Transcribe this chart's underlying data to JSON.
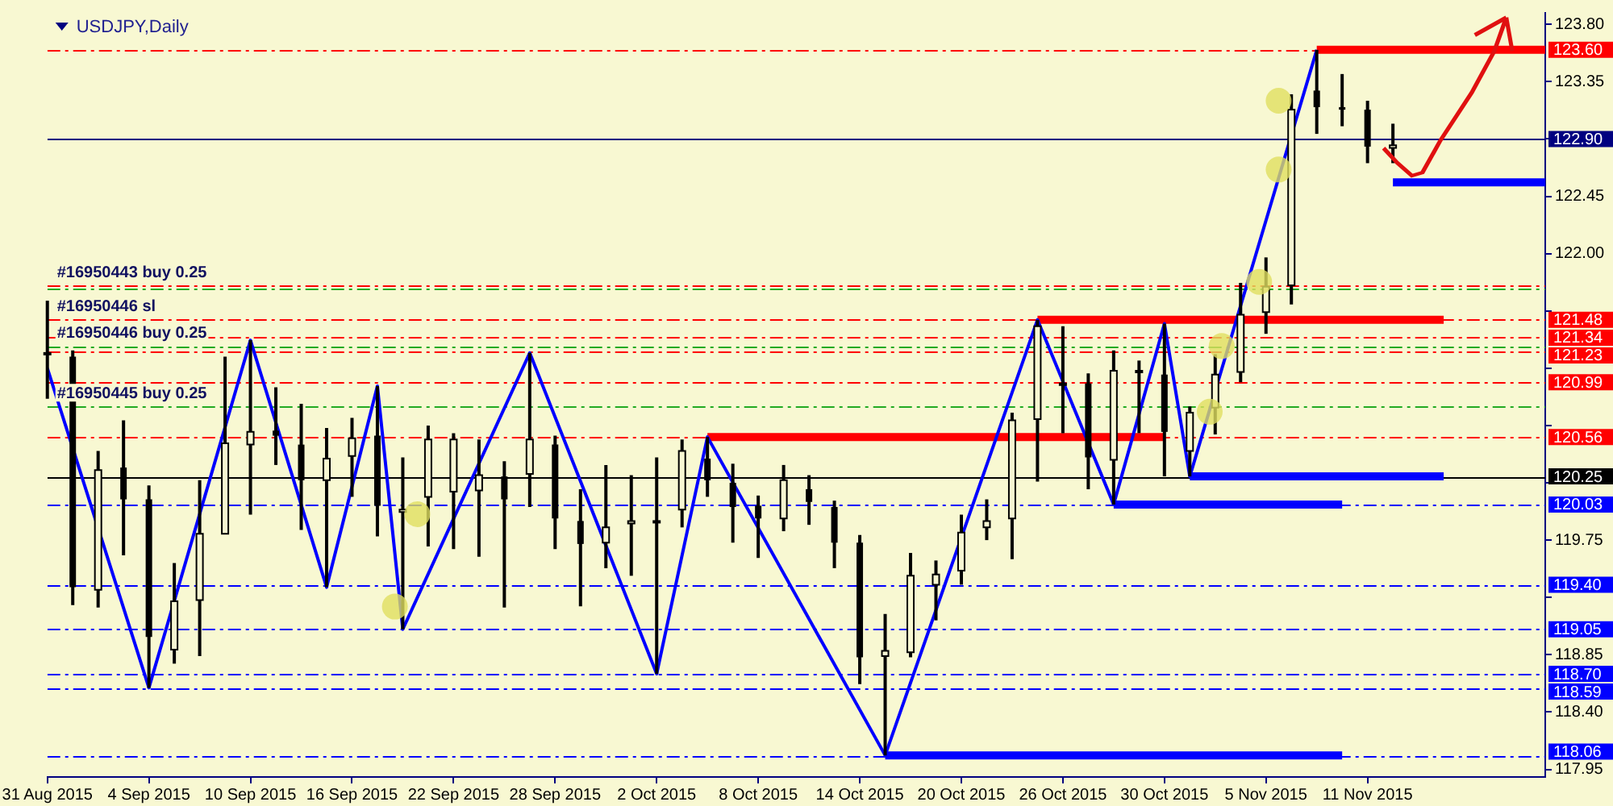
{
  "chart_data": {
    "type": "candlestick",
    "title": "USDJPY,Daily",
    "categories": [
      "31 Aug 2015",
      null,
      null,
      null,
      "4 Sep 2015",
      null,
      null,
      null,
      "10 Sep 2015",
      null,
      null,
      null,
      "16 Sep 2015",
      null,
      null,
      null,
      "22 Sep 2015",
      null,
      null,
      null,
      "28 Sep 2015",
      null,
      null,
      null,
      "2 Oct 2015",
      null,
      null,
      null,
      "8 Oct 2015",
      null,
      null,
      null,
      "14 Oct 2015",
      null,
      null,
      null,
      "20 Oct 2015",
      null,
      null,
      null,
      "26 Oct 2015",
      null,
      null,
      null,
      "30 Oct 2015",
      null,
      null,
      null,
      "5 Nov 2015",
      null,
      null,
      null,
      "11 Nov 2015",
      null,
      null,
      null,
      null,
      null,
      null,
      null
    ],
    "ohlc": [
      [
        121.22,
        121.63,
        120.86,
        121.22
      ],
      [
        121.19,
        121.24,
        119.24,
        119.38
      ],
      [
        119.36,
        120.45,
        119.22,
        120.3
      ],
      [
        120.32,
        120.69,
        119.63,
        120.07
      ],
      [
        120.07,
        120.18,
        118.59,
        118.99
      ],
      [
        118.89,
        119.57,
        118.78,
        119.27
      ],
      [
        119.28,
        120.22,
        118.84,
        119.8
      ],
      [
        119.8,
        121.19,
        119.8,
        120.51
      ],
      [
        120.5,
        121.32,
        119.95,
        120.6
      ],
      [
        120.61,
        120.95,
        120.34,
        120.57
      ],
      [
        120.5,
        120.82,
        119.83,
        120.22
      ],
      [
        120.22,
        120.63,
        119.38,
        120.39
      ],
      [
        120.41,
        120.71,
        120.09,
        120.55
      ],
      [
        120.57,
        120.96,
        119.78,
        120.02
      ],
      [
        119.97,
        120.4,
        119.05,
        119.99
      ],
      [
        120.09,
        120.65,
        119.7,
        120.54
      ],
      [
        120.13,
        120.59,
        119.68,
        120.54
      ],
      [
        120.14,
        120.54,
        119.62,
        120.26
      ],
      [
        120.25,
        120.37,
        119.22,
        120.07
      ],
      [
        120.27,
        121.22,
        120.01,
        120.54
      ],
      [
        120.5,
        120.57,
        119.68,
        119.92
      ],
      [
        119.9,
        120.15,
        119.23,
        119.72
      ],
      [
        119.73,
        120.34,
        119.53,
        119.85
      ],
      [
        119.88,
        120.26,
        119.47,
        119.9
      ],
      [
        119.9,
        120.4,
        118.7,
        119.9
      ],
      [
        119.99,
        120.54,
        119.85,
        120.45
      ],
      [
        120.39,
        120.56,
        120.09,
        120.22
      ],
      [
        120.2,
        120.35,
        119.73,
        120.01
      ],
      [
        120.02,
        120.1,
        119.61,
        119.92
      ],
      [
        119.92,
        120.34,
        119.82,
        120.22
      ],
      [
        120.15,
        120.26,
        119.87,
        120.05
      ],
      [
        120.01,
        120.06,
        119.53,
        119.73
      ],
      [
        119.73,
        119.79,
        118.62,
        118.83
      ],
      [
        118.84,
        119.17,
        118.06,
        118.88
      ],
      [
        118.87,
        119.65,
        118.83,
        119.47
      ],
      [
        119.4,
        119.59,
        119.12,
        119.48
      ],
      [
        119.51,
        119.95,
        119.4,
        119.81
      ],
      [
        119.85,
        120.07,
        119.75,
        119.9
      ],
      [
        119.92,
        120.75,
        119.6,
        120.69
      ],
      [
        120.7,
        121.48,
        120.21,
        121.43
      ],
      [
        120.98,
        121.43,
        120.59,
        120.98
      ],
      [
        120.98,
        121.06,
        120.15,
        120.4
      ],
      [
        120.38,
        121.24,
        120.03,
        121.08
      ],
      [
        121.08,
        121.16,
        120.59,
        121.08
      ],
      [
        121.05,
        121.45,
        120.25,
        120.6
      ],
      [
        120.45,
        120.8,
        120.25,
        120.75
      ],
      [
        120.79,
        121.21,
        120.58,
        121.05
      ],
      [
        121.07,
        121.77,
        120.99,
        121.52
      ],
      [
        121.54,
        121.97,
        121.37,
        121.74
      ],
      [
        121.75,
        123.25,
        121.6,
        123.13
      ],
      [
        123.28,
        123.6,
        122.94,
        123.15
      ],
      [
        123.15,
        123.41,
        123.0,
        123.13
      ],
      [
        123.13,
        123.2,
        122.71,
        122.84
      ],
      [
        122.83,
        123.02,
        122.71,
        122.85
      ],
      null,
      null,
      null,
      null,
      null,
      null
    ],
    "series": [
      {
        "type": "line",
        "color": "#0000ff",
        "values": [
          121.1,
          null,
          null,
          null,
          118.59,
          null,
          null,
          null,
          121.32,
          null,
          null,
          119.38,
          null,
          120.96,
          119.05,
          null,
          null,
          null,
          null,
          121.22,
          null,
          null,
          null,
          null,
          118.7,
          null,
          120.56,
          null,
          null,
          null,
          null,
          null,
          null,
          118.06,
          null,
          null,
          null,
          null,
          null,
          121.48,
          null,
          null,
          120.03,
          null,
          121.45,
          120.25,
          null,
          null,
          null,
          null,
          123.6,
          null,
          null,
          null,
          null,
          null,
          null,
          null,
          null,
          null
        ]
      },
      {
        "type": "line",
        "color": "#ff0000",
        "values": [
          null,
          null,
          null,
          null,
          null,
          null,
          null,
          null,
          null,
          null,
          null,
          null,
          null,
          null,
          null,
          null,
          null,
          null,
          null,
          null,
          null,
          null,
          null,
          null,
          null,
          null,
          null,
          null,
          null,
          null,
          null,
          null,
          null,
          null,
          null,
          null,
          null,
          null,
          null,
          121.48,
          null,
          null,
          null,
          null,
          null,
          null,
          null,
          null,
          null,
          null,
          null,
          null,
          null,
          null,
          null,
          121.48,
          null,
          null,
          null,
          null
        ]
      },
      {
        "type": "line",
        "color": "#ff0000",
        "values": [
          null,
          null,
          null,
          null,
          null,
          null,
          null,
          null,
          null,
          null,
          null,
          null,
          null,
          null,
          null,
          null,
          null,
          null,
          null,
          null,
          null,
          null,
          null,
          null,
          null,
          null,
          120.56,
          null,
          null,
          null,
          null,
          null,
          null,
          null,
          null,
          null,
          null,
          null,
          null,
          null,
          null,
          null,
          null,
          null,
          120.56,
          null,
          null,
          null,
          null,
          null,
          null,
          null,
          null,
          null,
          null,
          null,
          null,
          null,
          null,
          null
        ]
      },
      {
        "type": "line",
        "color": "#ff0000",
        "values": [
          null,
          null,
          null,
          null,
          null,
          null,
          null,
          null,
          null,
          null,
          null,
          null,
          null,
          null,
          null,
          null,
          null,
          null,
          null,
          null,
          null,
          null,
          null,
          null,
          null,
          null,
          null,
          null,
          null,
          null,
          null,
          null,
          null,
          null,
          null,
          null,
          null,
          null,
          null,
          null,
          null,
          null,
          null,
          null,
          null,
          null,
          null,
          null,
          null,
          null,
          123.6,
          null,
          null,
          null,
          null,
          null,
          null,
          null,
          null,
          123.6
        ]
      },
      {
        "type": "line",
        "color": "#0000ff",
        "values": [
          null,
          null,
          null,
          null,
          null,
          null,
          null,
          null,
          null,
          null,
          null,
          null,
          null,
          null,
          null,
          null,
          null,
          null,
          null,
          null,
          null,
          null,
          null,
          null,
          null,
          null,
          null,
          null,
          null,
          null,
          null,
          null,
          null,
          118.06,
          null,
          null,
          null,
          null,
          null,
          null,
          null,
          null,
          null,
          null,
          null,
          null,
          null,
          null,
          null,
          null,
          null,
          118.06,
          null,
          null,
          null,
          null,
          null,
          null,
          null,
          null
        ]
      },
      {
        "type": "line",
        "color": "#0000ff",
        "values": [
          null,
          null,
          null,
          null,
          null,
          null,
          null,
          null,
          null,
          null,
          null,
          null,
          null,
          null,
          null,
          null,
          null,
          null,
          null,
          null,
          null,
          null,
          null,
          null,
          null,
          null,
          null,
          null,
          null,
          null,
          null,
          null,
          null,
          null,
          null,
          null,
          null,
          null,
          null,
          null,
          null,
          null,
          120.03,
          null,
          null,
          null,
          null,
          null,
          null,
          null,
          null,
          120.03,
          null,
          null,
          null,
          null,
          null,
          null,
          null,
          null
        ]
      },
      {
        "type": "line",
        "color": "#0000ff",
        "values": [
          null,
          null,
          null,
          null,
          null,
          null,
          null,
          null,
          null,
          null,
          null,
          null,
          null,
          null,
          null,
          null,
          null,
          null,
          null,
          null,
          null,
          null,
          null,
          null,
          null,
          null,
          null,
          null,
          null,
          null,
          null,
          null,
          null,
          null,
          null,
          null,
          null,
          null,
          null,
          null,
          null,
          null,
          null,
          null,
          null,
          120.25,
          null,
          null,
          null,
          null,
          null,
          null,
          null,
          null,
          null,
          120.25,
          null,
          null,
          null,
          null
        ]
      },
      {
        "type": "line",
        "color": "#0000ff",
        "values": [
          null,
          null,
          null,
          null,
          null,
          null,
          null,
          null,
          null,
          null,
          null,
          null,
          null,
          null,
          null,
          null,
          null,
          null,
          null,
          null,
          null,
          null,
          null,
          null,
          null,
          null,
          null,
          null,
          null,
          null,
          null,
          null,
          null,
          null,
          null,
          null,
          null,
          null,
          null,
          null,
          null,
          null,
          null,
          null,
          null,
          null,
          null,
          null,
          null,
          null,
          null,
          null,
          null,
          122.56,
          null,
          null,
          null,
          null,
          null,
          122.56
        ]
      }
    ],
    "ylim": [
      117.89,
      123.89
    ],
    "yticks": [
      {
        "value": 123.8,
        "label": "123.80"
      },
      {
        "value": 123.35,
        "label": "123.35"
      },
      {
        "value": 122.9,
        "label": null
      },
      {
        "value": 122.45,
        "label": "122.45"
      },
      {
        "value": 122,
        "label": "122.00"
      },
      {
        "value": 121.55,
        "label": null
      },
      {
        "value": 121.1,
        "label": null
      },
      {
        "value": 120.65,
        "label": null
      },
      {
        "value": 120.2,
        "label": null
      },
      {
        "value": 119.75,
        "label": "119.75"
      },
      {
        "value": 119.3,
        "label": null
      },
      {
        "value": 118.85,
        "label": "118.85"
      },
      {
        "value": 118.4,
        "label": "118.40"
      },
      {
        "value": 117.95,
        "label": "117.95"
      }
    ],
    "ref_lines": [
      {
        "axis": "y",
        "value": 123.6,
        "label": "123.60",
        "color": "#ff0000",
        "line_style": "dashed"
      },
      {
        "axis": "y",
        "value": 122.9,
        "label": "122.90",
        "color": "#000080",
        "line_style": "solid"
      },
      {
        "axis": "y",
        "value": 121.75,
        "label": null,
        "color": "#ff0000",
        "line_style": "dashed"
      },
      {
        "axis": "y",
        "value": 121.73,
        "label": null,
        "color": "#22aa22",
        "line_style": "dashed"
      },
      {
        "axis": "y",
        "value": 121.48,
        "label": "121.48",
        "color": "#ff0000",
        "line_style": "dashed"
      },
      {
        "axis": "y",
        "value": 121.34,
        "label": "121.34",
        "color": "#ff0000",
        "line_style": "dashed"
      },
      {
        "axis": "y",
        "value": 121.27,
        "label": null,
        "color": "#22aa22",
        "line_style": "dashed"
      },
      {
        "axis": "y",
        "value": 121.23,
        "label": "121.23",
        "color": "#ff0000",
        "line_style": "dashed"
      },
      {
        "axis": "y",
        "value": 120.99,
        "label": "120.99",
        "color": "#ff0000",
        "line_style": "dashed"
      },
      {
        "axis": "y",
        "value": 120.8,
        "label": null,
        "color": "#22aa22",
        "line_style": "dashed"
      },
      {
        "axis": "y",
        "value": 120.56,
        "label": "120.56",
        "color": "#ff0000",
        "line_style": "dashed"
      },
      {
        "axis": "y",
        "value": 120.25,
        "label": "120.25",
        "color": "#000000",
        "line_style": "solid"
      },
      {
        "axis": "y",
        "value": 120.03,
        "label": "120.03",
        "color": "#0000ff",
        "line_style": "dashed"
      },
      {
        "axis": "y",
        "value": 119.4,
        "label": "119.40",
        "color": "#0000ff",
        "line_style": "dashed"
      },
      {
        "axis": "y",
        "value": 119.05,
        "label": "119.05",
        "color": "#0000ff",
        "line_style": "dashed"
      },
      {
        "axis": "y",
        "value": 118.7,
        "label": "118.70",
        "color": "#0000ff",
        "line_style": "dashed"
      },
      {
        "axis": "y",
        "value": 118.59,
        "label": "118.59",
        "color": "#0000ff",
        "line_style": "dashed"
      },
      {
        "axis": "y",
        "value": 118.06,
        "label": "118.06",
        "color": "#0000ff",
        "line_style": "dashed"
      }
    ],
    "annotations": [
      {
        "text": "#16950443 buy 0.25",
        "y": 121.75
      },
      {
        "text": "#16950446 sl",
        "y": 121.48
      },
      {
        "text": "#16950446 buy 0.25",
        "y": 121.27
      },
      {
        "text": "#16950445 buy 0.25",
        "y": 120.8
      }
    ],
    "grid": false,
    "legend": false
  }
}
